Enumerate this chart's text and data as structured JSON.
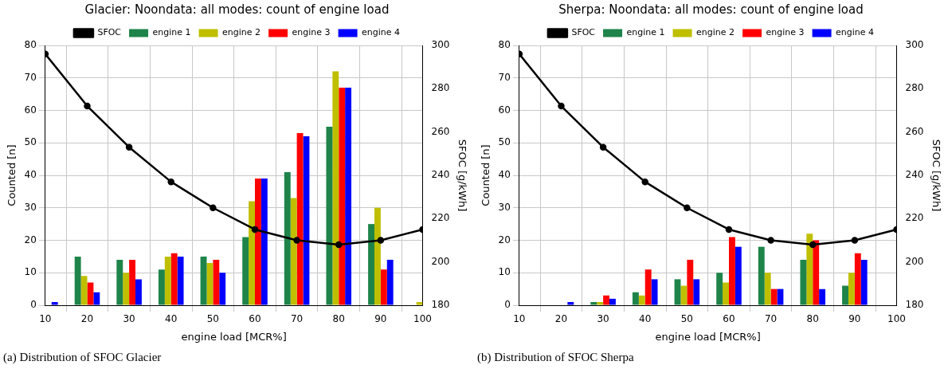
{
  "chart_data": [
    {
      "type": "bar",
      "title": "Glacier: Noondata: all modes: count of engine load",
      "xlabel": "engine load [MCR%]",
      "ylabel": "Counted [n]",
      "y2label": "SFOC [g/kWh]",
      "annotations": [
        "(a) Distribution of SFOC Glacier"
      ],
      "x": [
        10,
        20,
        30,
        40,
        50,
        60,
        70,
        80,
        90,
        100
      ],
      "series": [
        {
          "name": "SFOC",
          "type": "line",
          "axis": "y2",
          "color": "#000000",
          "values": [
            296,
            272,
            253,
            237,
            225,
            215,
            210,
            208,
            210,
            215
          ]
        },
        {
          "name": "engine 1",
          "color": "#1e8449",
          "values": [
            0,
            15,
            14,
            11,
            15,
            21,
            41,
            55,
            25,
            0
          ]
        },
        {
          "name": "engine 2",
          "color": "#bfbf00",
          "values": [
            0,
            9,
            10,
            15,
            13,
            32,
            33,
            72,
            30,
            1
          ]
        },
        {
          "name": "engine 3",
          "color": "#ff0000",
          "values": [
            0,
            7,
            14,
            16,
            14,
            39,
            53,
            67,
            11,
            0
          ]
        },
        {
          "name": "engine 4",
          "color": "#0000ff",
          "values": [
            1,
            4,
            8,
            15,
            10,
            39,
            52,
            67,
            14,
            0
          ]
        }
      ],
      "xlim": [
        10,
        100
      ],
      "xticks": [
        10,
        20,
        30,
        40,
        50,
        60,
        70,
        80,
        90,
        100
      ],
      "ylim": [
        0,
        80
      ],
      "yticks": [
        0,
        10,
        20,
        30,
        40,
        50,
        60,
        70,
        80
      ],
      "y2lim": [
        180,
        300
      ],
      "y2ticks": [
        180,
        200,
        220,
        240,
        260,
        280,
        300
      ],
      "grid": true,
      "legend": "top",
      "marker": "circle"
    },
    {
      "type": "bar",
      "title": "Sherpa: Noondata: all modes: count of engine load",
      "xlabel": "engine load [MCR%]",
      "ylabel": "Counted [n]",
      "y2label": "SFOC [g/kWh]",
      "annotations": [
        "(b) Distribution of SFOC Sherpa"
      ],
      "x": [
        10,
        20,
        30,
        40,
        50,
        60,
        70,
        80,
        90,
        100
      ],
      "series": [
        {
          "name": "SFOC",
          "type": "line",
          "axis": "y2",
          "color": "#000000",
          "values": [
            296,
            272,
            253,
            237,
            225,
            215,
            210,
            208,
            210,
            215
          ]
        },
        {
          "name": "engine 1",
          "color": "#1e8449",
          "values": [
            0,
            0,
            1,
            4,
            8,
            10,
            18,
            14,
            6,
            0
          ]
        },
        {
          "name": "engine 2",
          "color": "#bfbf00",
          "values": [
            0,
            0,
            1,
            3,
            6,
            7,
            10,
            22,
            10,
            0
          ]
        },
        {
          "name": "engine 3",
          "color": "#ff0000",
          "values": [
            0,
            0,
            3,
            11,
            14,
            21,
            5,
            20,
            16,
            0
          ]
        },
        {
          "name": "engine 4",
          "color": "#0000ff",
          "values": [
            0,
            1,
            2,
            8,
            8,
            18,
            5,
            5,
            14,
            0
          ]
        }
      ],
      "xlim": [
        10,
        100
      ],
      "xticks": [
        10,
        20,
        30,
        40,
        50,
        60,
        70,
        80,
        90,
        100
      ],
      "ylim": [
        0,
        80
      ],
      "yticks": [
        0,
        10,
        20,
        30,
        40,
        50,
        60,
        70,
        80
      ],
      "y2lim": [
        180,
        300
      ],
      "y2ticks": [
        180,
        200,
        220,
        240,
        260,
        280,
        300
      ],
      "grid": true,
      "legend": "top",
      "marker": "circle"
    }
  ]
}
